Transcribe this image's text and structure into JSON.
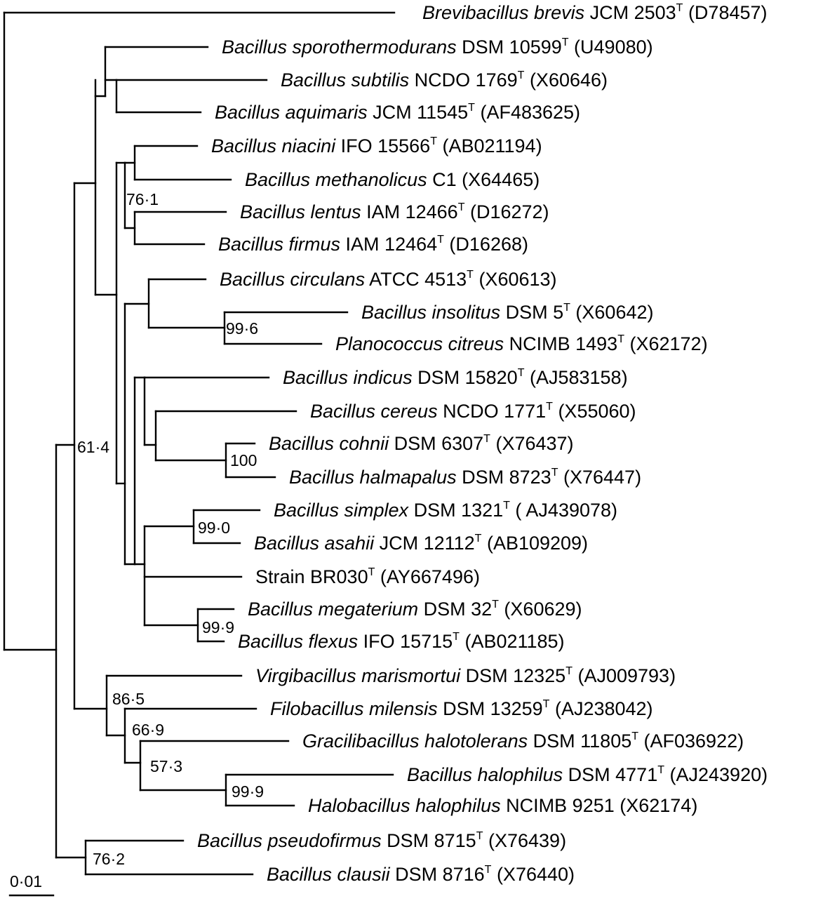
{
  "scale_bar": {
    "label": "0·01"
  },
  "taxa": [
    {
      "id": "t01",
      "parts": [
        {
          "t": "Brevibacillus brevis",
          "i": true
        },
        {
          "t": " JCM 2503"
        },
        {
          "t": "T",
          "sup": true
        },
        {
          "t": " (D78457)"
        }
      ]
    },
    {
      "id": "t02",
      "parts": [
        {
          "t": "Bacillus sporothermodurans",
          "i": true
        },
        {
          "t": " DSM 10599"
        },
        {
          "t": "T",
          "sup": true
        },
        {
          "t": " (U49080)"
        }
      ]
    },
    {
      "id": "t03",
      "parts": [
        {
          "t": "Bacillus subtilis",
          "i": true
        },
        {
          "t": " NCDO 1769"
        },
        {
          "t": "T",
          "sup": true
        },
        {
          "t": " (X60646)"
        }
      ]
    },
    {
      "id": "t04",
      "parts": [
        {
          "t": "Bacillus aquimaris",
          "i": true
        },
        {
          "t": " JCM 11545"
        },
        {
          "t": "T",
          "sup": true
        },
        {
          "t": " (AF483625)"
        }
      ]
    },
    {
      "id": "t05",
      "parts": [
        {
          "t": "Bacillus niacini",
          "i": true
        },
        {
          "t": " IFO 15566"
        },
        {
          "t": "T",
          "sup": true
        },
        {
          "t": " (AB021194)"
        }
      ]
    },
    {
      "id": "t06",
      "parts": [
        {
          "t": "Bacillus methanolicus",
          "i": true
        },
        {
          "t": " C1 (X64465)"
        }
      ]
    },
    {
      "id": "t07",
      "parts": [
        {
          "t": "Bacillus lentus",
          "i": true
        },
        {
          "t": " IAM 12466"
        },
        {
          "t": "T",
          "sup": true
        },
        {
          "t": " (D16272)"
        }
      ]
    },
    {
      "id": "t08",
      "parts": [
        {
          "t": "Bacillus firmus",
          "i": true
        },
        {
          "t": " IAM 12464"
        },
        {
          "t": "T",
          "sup": true
        },
        {
          "t": " (D16268)"
        }
      ]
    },
    {
      "id": "t09",
      "parts": [
        {
          "t": "Bacillus circulans",
          "i": true
        },
        {
          "t": " ATCC 4513"
        },
        {
          "t": "T",
          "sup": true
        },
        {
          "t": " (X60613)"
        }
      ]
    },
    {
      "id": "t10",
      "parts": [
        {
          "t": "Bacillus insolitus",
          "i": true
        },
        {
          "t": " DSM 5"
        },
        {
          "t": "T",
          "sup": true
        },
        {
          "t": " (X60642)"
        }
      ]
    },
    {
      "id": "t11",
      "parts": [
        {
          "t": "Planococcus citreus",
          "i": true
        },
        {
          "t": " NCIMB 1493"
        },
        {
          "t": "T",
          "sup": true
        },
        {
          "t": " (X62172)"
        }
      ]
    },
    {
      "id": "t12",
      "parts": [
        {
          "t": "Bacillus indicus",
          "i": true
        },
        {
          "t": " DSM 15820"
        },
        {
          "t": "T",
          "sup": true
        },
        {
          "t": " (AJ583158)"
        }
      ]
    },
    {
      "id": "t13",
      "parts": [
        {
          "t": "Bacillus cereus",
          "i": true
        },
        {
          "t": " NCDO 1771"
        },
        {
          "t": "T",
          "sup": true
        },
        {
          "t": " (X55060)"
        }
      ]
    },
    {
      "id": "t14",
      "parts": [
        {
          "t": "Bacillus cohnii",
          "i": true
        },
        {
          "t": " DSM 6307"
        },
        {
          "t": "T",
          "sup": true
        },
        {
          "t": " (X76437)"
        }
      ]
    },
    {
      "id": "t15",
      "parts": [
        {
          "t": "Bacillus halmapalus",
          "i": true
        },
        {
          "t": " DSM 8723"
        },
        {
          "t": "T",
          "sup": true
        },
        {
          "t": " (X76447)"
        }
      ]
    },
    {
      "id": "t16",
      "parts": [
        {
          "t": "Bacillus simplex",
          "i": true
        },
        {
          "t": " DSM 1321"
        },
        {
          "t": "T",
          "sup": true
        },
        {
          "t": " ( AJ439078)"
        }
      ]
    },
    {
      "id": "t17",
      "parts": [
        {
          "t": "Bacillus asahii",
          "i": true
        },
        {
          "t": " JCM 12112"
        },
        {
          "t": "T",
          "sup": true
        },
        {
          "t": "  (AB109209)"
        }
      ]
    },
    {
      "id": "t18",
      "parts": [
        {
          "t": "Strain BR030"
        },
        {
          "t": "T",
          "sup": true
        },
        {
          "t": " (AY667496)"
        }
      ]
    },
    {
      "id": "t19",
      "parts": [
        {
          "t": "Bacillus megaterium",
          "i": true
        },
        {
          "t": " DSM 32"
        },
        {
          "t": "T",
          "sup": true
        },
        {
          "t": " (X60629)"
        }
      ]
    },
    {
      "id": "t20",
      "parts": [
        {
          "t": "Bacillus flexus",
          "i": true
        },
        {
          "t": " IFO 15715"
        },
        {
          "t": "T",
          "sup": true
        },
        {
          "t": " (AB021185)"
        }
      ]
    },
    {
      "id": "t21",
      "parts": [
        {
          "t": "Virgibacillus marismortui",
          "i": true
        },
        {
          "t": " DSM 12325"
        },
        {
          "t": "T",
          "sup": true
        },
        {
          "t": " (AJ009793)"
        }
      ]
    },
    {
      "id": "t22",
      "parts": [
        {
          "t": "Filobacillus milensis",
          "i": true
        },
        {
          "t": " DSM 13259"
        },
        {
          "t": "T",
          "sup": true
        },
        {
          "t": " (AJ238042)"
        }
      ]
    },
    {
      "id": "t23",
      "parts": [
        {
          "t": "Gracilibacillus halotolerans",
          "i": true
        },
        {
          "t": " DSM 11805"
        },
        {
          "t": "T",
          "sup": true
        },
        {
          "t": " (AF036922)"
        }
      ]
    },
    {
      "id": "t24",
      "parts": [
        {
          "t": "Bacillus halophilus",
          "i": true
        },
        {
          "t": " DSM 4771"
        },
        {
          "t": "T",
          "sup": true
        },
        {
          "t": " (AJ243920)"
        }
      ]
    },
    {
      "id": "t25",
      "parts": [
        {
          "t": "Halobacillus halophilus",
          "i": true
        },
        {
          "t": " NCIMB 9251 (X62174)"
        }
      ]
    },
    {
      "id": "t26",
      "parts": [
        {
          "t": "Bacillus pseudofirmus",
          "i": true
        },
        {
          "t": " DSM 8715"
        },
        {
          "t": "T",
          "sup": true
        },
        {
          "t": " (X76439)"
        }
      ]
    },
    {
      "id": "t27",
      "parts": [
        {
          "t": "Bacillus clausii",
          "i": true
        },
        {
          "t": " DSM 8716"
        },
        {
          "t": "T",
          "sup": true
        },
        {
          "t": " (X76440)"
        }
      ]
    }
  ],
  "bootstrap": [
    {
      "id": "b_lentus_firmus",
      "value": "76·1"
    },
    {
      "id": "b_insolitus_citreus",
      "value": "99·6"
    },
    {
      "id": "b_bacillus_main",
      "value": "61·4"
    },
    {
      "id": "b_cohnii_halmapalus",
      "value": "100"
    },
    {
      "id": "b_simplex_asahii",
      "value": "99·0"
    },
    {
      "id": "b_megaterium_flexus",
      "value": "99·9"
    },
    {
      "id": "b_halophiles_clade",
      "value": "86·5"
    },
    {
      "id": "b_filo_grac_halo",
      "value": "66·9"
    },
    {
      "id": "b_grac_halo",
      "value": "57·3"
    },
    {
      "id": "b_halophilus_pair",
      "value": "99·9"
    },
    {
      "id": "b_pseudofirmus_clausii",
      "value": "76·2"
    }
  ]
}
